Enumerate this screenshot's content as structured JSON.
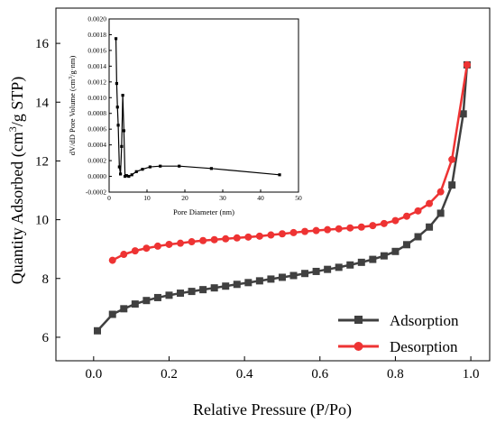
{
  "chart_data": [
    {
      "type": "line",
      "xlabel": "Relative Pressure (P/Po)",
      "ylabel_parts": [
        "Quantity Adsorbed (cm",
        "3",
        "/g STP)"
      ],
      "xlim": [
        -0.1,
        1.05
      ],
      "ylim": [
        5.2,
        17.2
      ],
      "xticks": [
        0.0,
        0.2,
        0.4,
        0.6,
        0.8,
        1.0
      ],
      "xtick_labels": [
        "0.0",
        "0.2",
        "0.4",
        "0.6",
        "0.8",
        "1.0"
      ],
      "yticks": [
        6,
        8,
        10,
        12,
        14,
        16
      ],
      "ytick_labels": [
        "6",
        "8",
        "10",
        "12",
        "14",
        "16"
      ],
      "legend_position": "bottom-right",
      "series": [
        {
          "name": "Adsorption",
          "color": "#404040",
          "marker": "square",
          "x": [
            0.01,
            0.05,
            0.08,
            0.11,
            0.14,
            0.17,
            0.2,
            0.23,
            0.26,
            0.29,
            0.32,
            0.35,
            0.38,
            0.41,
            0.44,
            0.47,
            0.5,
            0.53,
            0.56,
            0.59,
            0.62,
            0.65,
            0.68,
            0.71,
            0.74,
            0.77,
            0.8,
            0.83,
            0.86,
            0.89,
            0.92,
            0.95,
            0.98,
            0.99
          ],
          "y": [
            6.22,
            6.78,
            6.97,
            7.13,
            7.25,
            7.35,
            7.43,
            7.5,
            7.56,
            7.62,
            7.68,
            7.74,
            7.8,
            7.86,
            7.92,
            7.98,
            8.04,
            8.1,
            8.17,
            8.24,
            8.31,
            8.38,
            8.46,
            8.55,
            8.65,
            8.77,
            8.92,
            9.15,
            9.42,
            9.75,
            10.22,
            11.18,
            13.6,
            15.27
          ]
        },
        {
          "name": "Desorption",
          "color": "#ee3333",
          "marker": "circle",
          "x": [
            0.05,
            0.08,
            0.11,
            0.14,
            0.17,
            0.2,
            0.23,
            0.26,
            0.29,
            0.32,
            0.35,
            0.38,
            0.41,
            0.44,
            0.47,
            0.5,
            0.53,
            0.56,
            0.59,
            0.62,
            0.65,
            0.68,
            0.71,
            0.74,
            0.77,
            0.8,
            0.83,
            0.86,
            0.89,
            0.92,
            0.95,
            0.99
          ],
          "y": [
            8.62,
            8.82,
            8.94,
            9.03,
            9.1,
            9.16,
            9.2,
            9.25,
            9.29,
            9.32,
            9.35,
            9.38,
            9.41,
            9.44,
            9.48,
            9.52,
            9.56,
            9.6,
            9.63,
            9.66,
            9.69,
            9.72,
            9.75,
            9.8,
            9.87,
            9.97,
            10.12,
            10.3,
            10.55,
            10.95,
            12.05,
            15.27
          ]
        }
      ]
    },
    {
      "type": "line",
      "xlabel": "Pore Diameter (nm)",
      "ylabel_parts": [
        "dV/dD Pore Volume (cm",
        "3",
        "/g·nm)"
      ],
      "xlim": [
        0,
        50
      ],
      "ylim": [
        -0.0002,
        0.002
      ],
      "xticks": [
        0,
        10,
        20,
        30,
        40,
        50
      ],
      "xtick_labels": [
        "0",
        "10",
        "20",
        "30",
        "40",
        "50"
      ],
      "yticks": [
        -0.0002,
        0.0,
        0.0002,
        0.0004,
        0.0006,
        0.0008,
        0.001,
        0.0012,
        0.0014,
        0.0016,
        0.0018,
        0.002
      ],
      "ytick_labels": [
        "-0.0002",
        "0.0000",
        "0.0002",
        "0.0004",
        "0.0006",
        "0.0008",
        "0.0010",
        "0.0012",
        "0.0014",
        "0.0016",
        "0.0018",
        "0.0020"
      ],
      "series": [
        {
          "color": "#000000",
          "marker": "square",
          "x": [
            1.8,
            2.0,
            2.2,
            2.4,
            2.7,
            3.0,
            3.3,
            3.6,
            3.9,
            4.2,
            4.6,
            5.2,
            6.0,
            7.2,
            8.8,
            10.8,
            13.5,
            18.5,
            27.0,
            45.0
          ],
          "y": [
            0.00175,
            0.00118,
            0.00088,
            0.00065,
            0.00012,
            3e-05,
            0.00038,
            0.00103,
            0.00058,
            0.0,
            1e-05,
            0.0,
            2e-05,
            6e-05,
            9e-05,
            0.00012,
            0.00013,
            0.00013,
            0.0001,
            2e-05
          ]
        }
      ]
    }
  ]
}
